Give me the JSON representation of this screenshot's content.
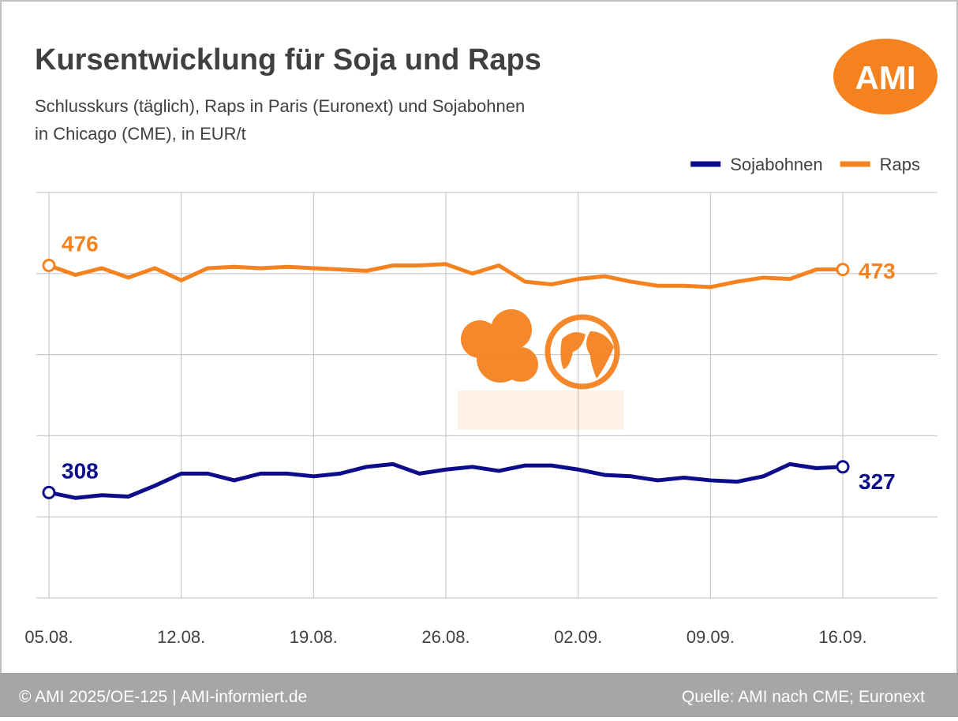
{
  "chart_data": {
    "type": "line",
    "title": "Kursentwicklung für Soja und Raps",
    "subtitle": [
      "Schlusskurs (täglich), Raps in Paris (Euronext) und Sojabohnen",
      "in Chicago (CME), in EUR/t"
    ],
    "logo": "AMI",
    "footer_left": "© AMI 2025/OE-125 | AMI-informiert.de",
    "footer_right": "Quelle: AMI nach CME; Euronext",
    "categories": [
      "05.08.",
      null,
      null,
      null,
      null,
      "12.08.",
      null,
      null,
      null,
      null,
      "19.08.",
      null,
      null,
      null,
      null,
      "26.08.",
      null,
      null,
      null,
      null,
      "02.09.",
      null,
      null,
      null,
      null,
      "09.09.",
      null,
      null,
      null,
      null,
      "16.09."
    ],
    "series": [
      {
        "name": "Sojabohnen",
        "color": "#0d0d8c",
        "values": [
          308,
          304,
          306,
          305,
          313,
          322,
          322,
          317,
          322,
          322,
          320,
          322,
          327,
          329,
          322,
          325,
          327,
          324,
          328,
          328,
          325,
          321,
          320,
          317,
          319,
          317,
          316,
          320,
          329,
          326,
          327
        ]
      },
      {
        "name": "Raps",
        "color": "#f5821f",
        "values": [
          476,
          469,
          474,
          467,
          474,
          465,
          474,
          475,
          474,
          475,
          474,
          473,
          472,
          476,
          476,
          477,
          470,
          476,
          464,
          462,
          466,
          468,
          464,
          461,
          461,
          460,
          464,
          467,
          466,
          473,
          473
        ]
      }
    ],
    "ylim": [
      230,
      530
    ],
    "yticks": [
      230,
      290,
      350,
      410,
      470,
      530
    ],
    "grid": true,
    "legend": "top-right"
  }
}
